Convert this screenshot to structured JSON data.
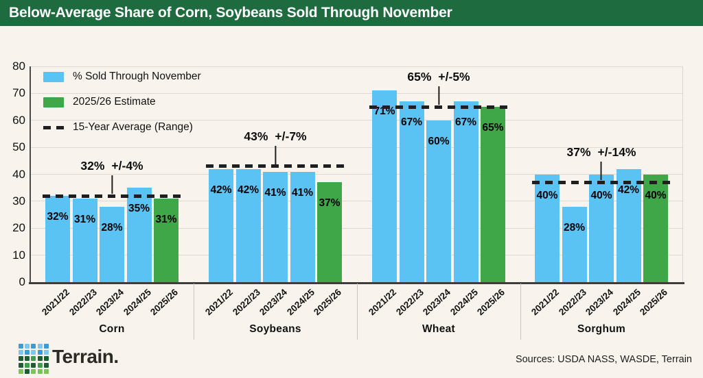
{
  "header": {
    "title": "Below-Average Share of Corn, Soybeans Sold Through November"
  },
  "colors": {
    "header_bg": "#1e6b3f",
    "background": "#f8f3ec",
    "bar_blue": "#5bc2f4",
    "bar_green": "#3fa747",
    "grid": "#ded9d0",
    "axis": "#3c3c3c",
    "dash": "#1f1f1f"
  },
  "legend": {
    "items": [
      {
        "label": "% Sold Through November",
        "swatch": "blue"
      },
      {
        "label": "2025/26 Estimate",
        "swatch": "green"
      },
      {
        "label": "15-Year Average (Range)",
        "swatch": "dash"
      }
    ]
  },
  "chart_data": {
    "type": "bar",
    "title": "Below-Average Share of Corn, Soybeans Sold Through November",
    "xlabel": "",
    "ylabel": "",
    "ylim": [
      0,
      80
    ],
    "yticks": [
      0,
      10,
      20,
      30,
      40,
      50,
      60,
      70,
      80
    ],
    "grid": true,
    "legend_position": "top-left",
    "categories": [
      "2021/22",
      "2022/23",
      "2023/24",
      "2024/25",
      "2025/26"
    ],
    "estimate_category": "2025/26",
    "estimate_index": 4,
    "groups": [
      {
        "name": "Corn",
        "values": [
          32,
          31,
          28,
          35,
          31
        ],
        "average": 32,
        "avg_label": "32%",
        "range_label": "+/-4%"
      },
      {
        "name": "Soybeans",
        "values": [
          42,
          42,
          41,
          41,
          37
        ],
        "average": 43,
        "avg_label": "43%",
        "range_label": "+/-7%"
      },
      {
        "name": "Wheat",
        "values": [
          71,
          67,
          60,
          67,
          65
        ],
        "average": 65,
        "avg_label": "65%",
        "range_label": "+/-5%"
      },
      {
        "name": "Sorghum",
        "values": [
          40,
          28,
          40,
          42,
          40
        ],
        "average": 37,
        "avg_label": "37%",
        "range_label": "+/-14%"
      }
    ]
  },
  "footer": {
    "brand": "Terrain.",
    "sources": "Sources: USDA NASS, WASDE, Terrain",
    "logo_grid": [
      "#3d9bd6",
      "#7ec6ee",
      "#3d9bd6",
      "#7ec6ee",
      "#3d9bd6",
      "#7ec6ee",
      "#3d9bd6",
      "#7ec6ee",
      "#3d9bd6",
      "#7ec6ee",
      "#1e5c33",
      "#1e5c33",
      "#3f9e4c",
      "#1e5c33",
      "#1e5c33",
      "#1e5c33",
      "#3f9e4c",
      "#1e5c33",
      "#3f9e4c",
      "#1e5c33",
      "#7cc35b",
      "#1e5c33",
      "#7cc35b",
      "#7cc35b",
      "#7cc35b"
    ]
  }
}
